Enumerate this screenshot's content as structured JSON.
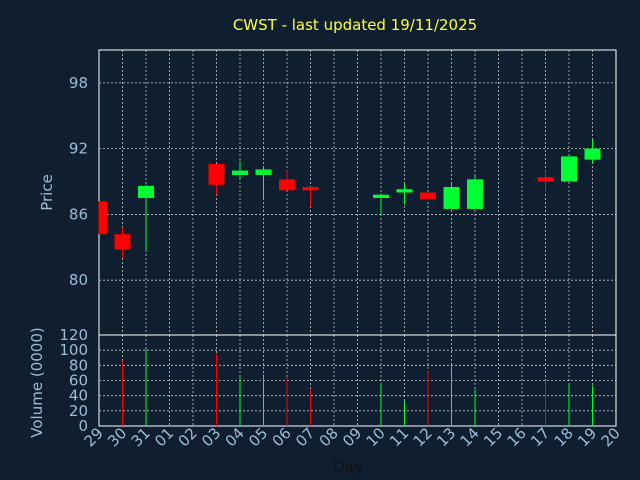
{
  "title": "CWST - last updated 19/11/2025",
  "colors": {
    "background": "#0f1f30",
    "up": "#00ff33",
    "down": "#ff0000",
    "title": "#ffff33",
    "text": "#9bbdd8",
    "grid": "#c8c8c8"
  },
  "chart_data": [
    {
      "type": "candlestick",
      "ylabel": "Price",
      "ylim": [
        75,
        101
      ],
      "yticks": [
        80,
        86,
        92,
        98
      ],
      "grid": true,
      "x_tick_labels": [
        "29",
        "30",
        "31",
        "01",
        "02",
        "03",
        "04",
        "05",
        "06",
        "07",
        "08",
        "09",
        "10",
        "11",
        "12",
        "13",
        "14",
        "15",
        "16",
        "17",
        "18",
        "19",
        "20"
      ],
      "candles": [
        {
          "day": "29",
          "open": 87.2,
          "high": 87.2,
          "low": 84.2,
          "close": 84.2
        },
        {
          "day": "30",
          "open": 84.2,
          "high": 84.8,
          "low": 82.0,
          "close": 82.8
        },
        {
          "day": "31",
          "open": 87.5,
          "high": 88.7,
          "low": 82.6,
          "close": 88.6
        },
        {
          "day": "03",
          "open": 90.6,
          "high": 90.6,
          "low": 87.8,
          "close": 88.7
        },
        {
          "day": "04",
          "open": 89.6,
          "high": 90.9,
          "low": 89.2,
          "close": 90.0
        },
        {
          "day": "05",
          "open": 89.6,
          "high": 90.3,
          "low": 87.5,
          "close": 90.1
        },
        {
          "day": "06",
          "open": 89.2,
          "high": 90.0,
          "low": 88.2,
          "close": 88.2
        },
        {
          "day": "07",
          "open": 88.5,
          "high": 88.5,
          "low": 86.7,
          "close": 88.2
        },
        {
          "day": "10",
          "open": 87.5,
          "high": 87.9,
          "low": 85.9,
          "close": 87.8
        },
        {
          "day": "11",
          "open": 88.0,
          "high": 88.8,
          "low": 86.9,
          "close": 88.3
        },
        {
          "day": "12",
          "open": 88.0,
          "high": 88.0,
          "low": 87.3,
          "close": 87.4
        },
        {
          "day": "13",
          "open": 86.5,
          "high": 88.9,
          "low": 86.5,
          "close": 88.5
        },
        {
          "day": "14",
          "open": 86.5,
          "high": 89.5,
          "low": 86.5,
          "close": 89.2
        },
        {
          "day": "17",
          "open": 89.4,
          "high": 90.0,
          "low": 88.0,
          "close": 89.0
        },
        {
          "day": "18",
          "open": 89.0,
          "high": 91.3,
          "low": 89.0,
          "close": 91.3
        },
        {
          "day": "19",
          "open": 91.0,
          "high": 92.8,
          "low": 90.7,
          "close": 92.0
        }
      ]
    },
    {
      "type": "bar",
      "ylabel": "Volume (0000)",
      "xlabel": "Day",
      "ylim": [
        0,
        120
      ],
      "yticks": [
        0,
        20,
        40,
        60,
        80,
        100,
        120
      ],
      "grid": true,
      "volumes": [
        {
          "day": "30",
          "value": 86,
          "direction": "down"
        },
        {
          "day": "31",
          "value": 101,
          "direction": "up"
        },
        {
          "day": "03",
          "value": 95,
          "direction": "down"
        },
        {
          "day": "04",
          "value": 65,
          "direction": "up"
        },
        {
          "day": "05",
          "value": 68,
          "direction": "up"
        },
        {
          "day": "06",
          "value": 65,
          "direction": "down"
        },
        {
          "day": "07",
          "value": 48,
          "direction": "down"
        },
        {
          "day": "10",
          "value": 57,
          "direction": "up"
        },
        {
          "day": "11",
          "value": 33,
          "direction": "up"
        },
        {
          "day": "12",
          "value": 72,
          "direction": "down"
        },
        {
          "day": "13",
          "value": 80,
          "direction": "up"
        },
        {
          "day": "14",
          "value": 48,
          "direction": "up"
        },
        {
          "day": "17",
          "value": 60,
          "direction": "down"
        },
        {
          "day": "18",
          "value": 55,
          "direction": "up"
        },
        {
          "day": "19",
          "value": 53,
          "direction": "up"
        }
      ]
    }
  ]
}
